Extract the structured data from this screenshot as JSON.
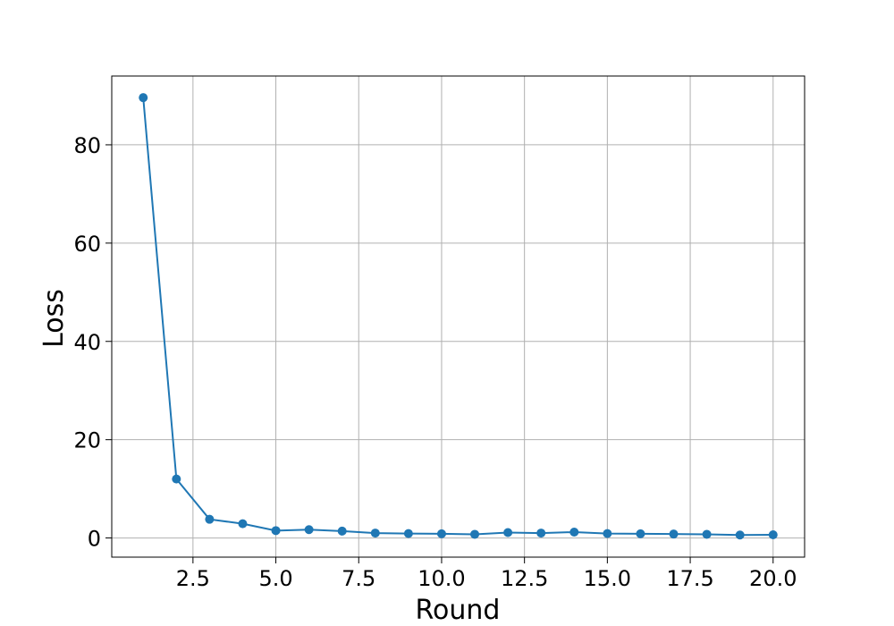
{
  "chart_data": {
    "type": "line",
    "title": "",
    "xlabel": "Round",
    "ylabel": "Loss",
    "xlim": [
      0.05,
      20.95
    ],
    "ylim": [
      -3.9,
      94.0
    ],
    "x_ticks": [
      2.5,
      5.0,
      7.5,
      10.0,
      12.5,
      15.0,
      17.5,
      20.0
    ],
    "y_ticks": [
      0,
      20,
      40,
      60,
      80
    ],
    "grid": true,
    "legend": "none",
    "series": [
      {
        "color": "#1f77b4",
        "marker": "circle",
        "x": [
          1,
          2,
          3,
          4,
          5,
          6,
          7,
          8,
          9,
          10,
          11,
          12,
          13,
          14,
          15,
          16,
          17,
          18,
          19,
          20
        ],
        "y": [
          89.6,
          12.0,
          3.8,
          2.9,
          1.5,
          1.7,
          1.4,
          1.0,
          0.9,
          0.85,
          0.75,
          1.1,
          1.0,
          1.2,
          0.9,
          0.85,
          0.8,
          0.75,
          0.6,
          0.65
        ]
      }
    ]
  }
}
